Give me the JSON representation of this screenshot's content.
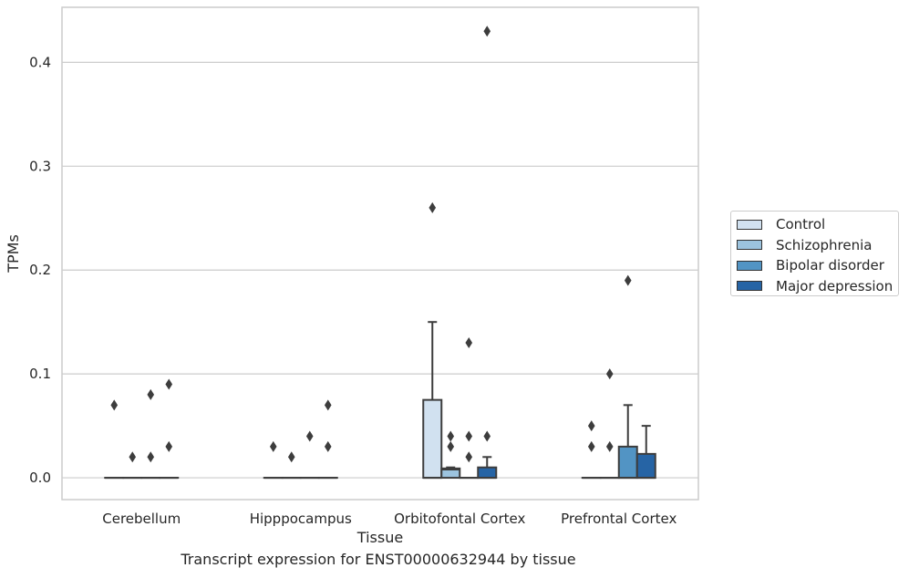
{
  "chart_data": {
    "type": "box",
    "xlabel": "Tissue",
    "ylabel": "TPMs",
    "caption": "Transcript expression for ENST00000632944 by tissue",
    "categories": [
      "Cerebellum",
      "Hipppocampus",
      "Orbitofontal Cortex",
      "Prefrontal Cortex"
    ],
    "ylim": [
      -0.021,
      0.453
    ],
    "yticks": [
      "0.0",
      "0.1",
      "0.2",
      "0.3",
      "0.4"
    ],
    "ytick_values": [
      0.0,
      0.1,
      0.2,
      0.3,
      0.4
    ],
    "grid": "horizontal",
    "legend_position": "right",
    "series": [
      {
        "name": "Control",
        "color": "#d1e1f0"
      },
      {
        "name": "Schizophrenia",
        "color": "#9cc3de"
      },
      {
        "name": "Bipolar disorder",
        "color": "#5294c4"
      },
      {
        "name": "Major depression",
        "color": "#2664a5"
      }
    ],
    "boxes": [
      {
        "category": 0,
        "series": 0,
        "q1": 0,
        "median": 0,
        "q3": 0,
        "whislo": 0,
        "whishi": 0,
        "fliers": [
          0.07
        ]
      },
      {
        "category": 0,
        "series": 1,
        "q1": 0,
        "median": 0,
        "q3": 0,
        "whislo": 0,
        "whishi": 0,
        "fliers": [
          0.02
        ]
      },
      {
        "category": 0,
        "series": 2,
        "q1": 0,
        "median": 0,
        "q3": 0,
        "whislo": 0,
        "whishi": 0,
        "fliers": [
          0.08,
          0.02
        ]
      },
      {
        "category": 0,
        "series": 3,
        "q1": 0,
        "median": 0,
        "q3": 0,
        "whislo": 0,
        "whishi": 0,
        "fliers": [
          0.09,
          0.03
        ]
      },
      {
        "category": 1,
        "series": 0,
        "q1": 0,
        "median": 0,
        "q3": 0,
        "whislo": 0,
        "whishi": 0,
        "fliers": [
          0.03
        ]
      },
      {
        "category": 1,
        "series": 1,
        "q1": 0,
        "median": 0,
        "q3": 0,
        "whislo": 0,
        "whishi": 0,
        "fliers": [
          0.02
        ]
      },
      {
        "category": 1,
        "series": 2,
        "q1": 0,
        "median": 0,
        "q3": 0,
        "whislo": 0,
        "whishi": 0,
        "fliers": [
          0.04
        ]
      },
      {
        "category": 1,
        "series": 3,
        "q1": 0,
        "median": 0,
        "q3": 0,
        "whislo": 0,
        "whishi": 0,
        "fliers": [
          0.07,
          0.03
        ]
      },
      {
        "category": 2,
        "series": 0,
        "q1": 0,
        "median": 0,
        "q3": 0.075,
        "whislo": 0,
        "whishi": 0.15,
        "fliers": [
          0.26
        ]
      },
      {
        "category": 2,
        "series": 1,
        "q1": 0,
        "median": 0.008,
        "q3": 0.009,
        "whislo": 0,
        "whishi": 0.01,
        "fliers": [
          0.04,
          0.03
        ]
      },
      {
        "category": 2,
        "series": 2,
        "q1": 0,
        "median": 0,
        "q3": 0,
        "whislo": 0,
        "whishi": 0,
        "fliers": [
          0.13,
          0.04,
          0.02
        ]
      },
      {
        "category": 2,
        "series": 3,
        "q1": 0,
        "median": 0,
        "q3": 0.01,
        "whislo": 0,
        "whishi": 0.02,
        "fliers": [
          0.43,
          0.04
        ]
      },
      {
        "category": 3,
        "series": 0,
        "q1": 0,
        "median": 0,
        "q3": 0,
        "whislo": 0,
        "whishi": 0,
        "fliers": [
          0.05,
          0.03
        ]
      },
      {
        "category": 3,
        "series": 1,
        "q1": 0,
        "median": 0,
        "q3": 0,
        "whislo": 0,
        "whishi": 0,
        "fliers": [
          0.1,
          0.03
        ]
      },
      {
        "category": 3,
        "series": 2,
        "q1": 0,
        "median": 0,
        "q3": 0.03,
        "whislo": 0,
        "whishi": 0.07,
        "fliers": [
          0.19
        ]
      },
      {
        "category": 3,
        "series": 3,
        "q1": 0,
        "median": 0,
        "q3": 0.023,
        "whislo": 0,
        "whishi": 0.05,
        "fliers": []
      }
    ]
  }
}
